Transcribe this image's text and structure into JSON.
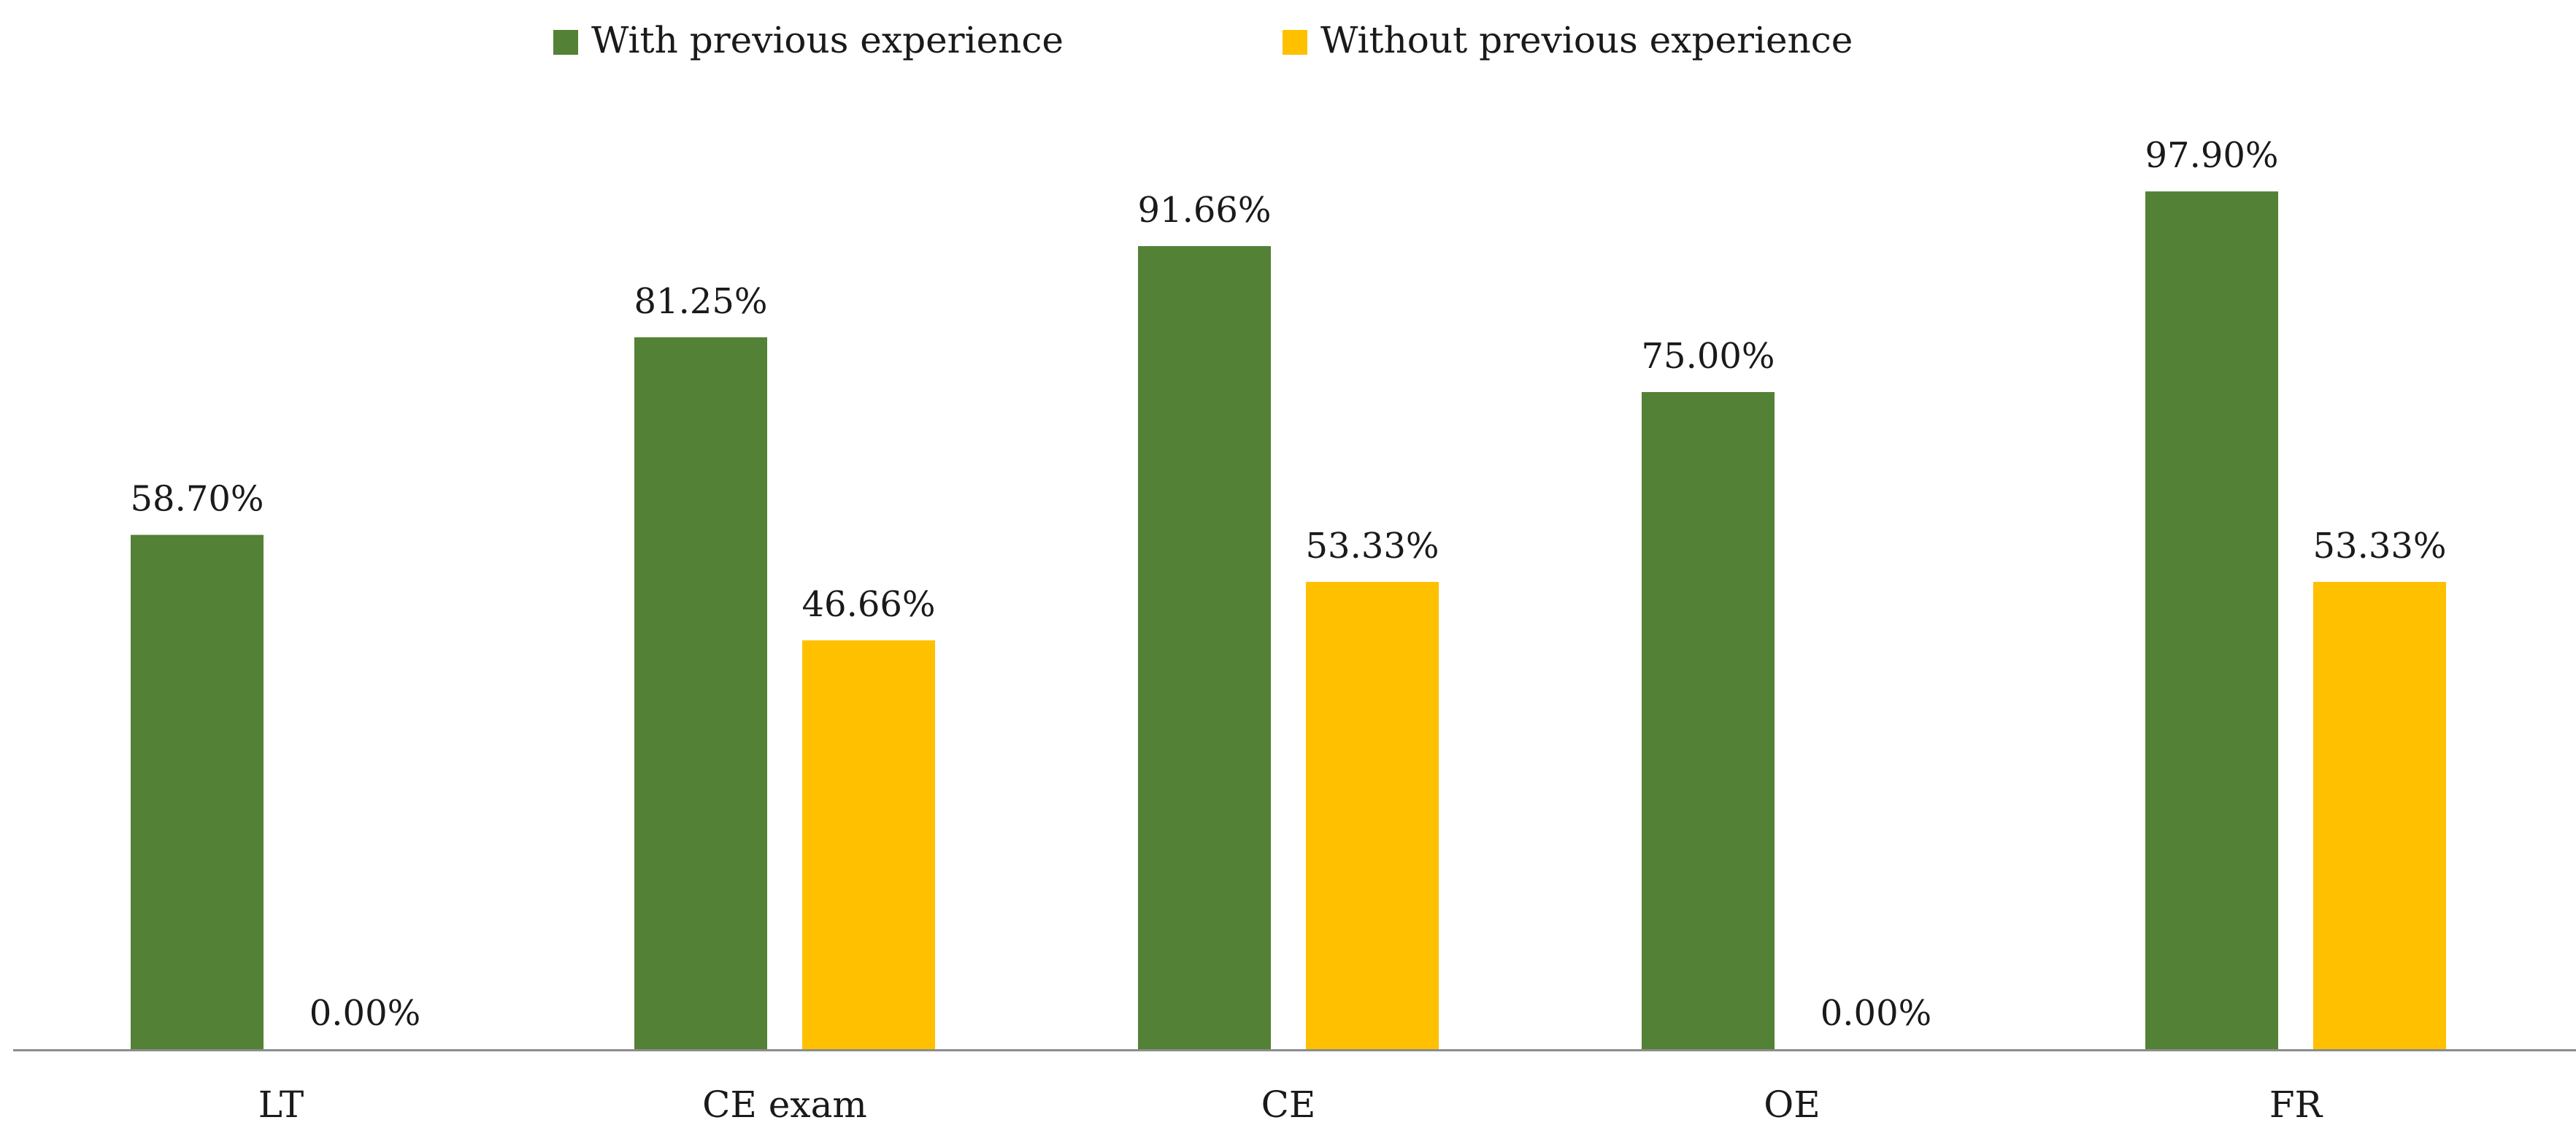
{
  "chart_data": {
    "type": "bar",
    "title": "",
    "xlabel": "",
    "ylabel": "",
    "ylim": [
      0,
      100
    ],
    "grid": false,
    "legend_position": "top-center",
    "categories": [
      "LT",
      "CE exam",
      "CE",
      "OE",
      "FR"
    ],
    "series": [
      {
        "name": "With previous experience",
        "color": "#538135",
        "values": [
          58.7,
          81.25,
          91.66,
          75.0,
          97.9
        ],
        "labels": [
          "58.70%",
          "81.25%",
          "91.66%",
          "75.00%",
          "97.90%"
        ]
      },
      {
        "name": "Without previous experience",
        "color": "#FFC000",
        "values": [
          0.0,
          46.66,
          53.33,
          0.0,
          53.33
        ],
        "labels": [
          "0.00%",
          "46.66%",
          "53.33%",
          "0.00%",
          "53.33%"
        ]
      }
    ]
  }
}
